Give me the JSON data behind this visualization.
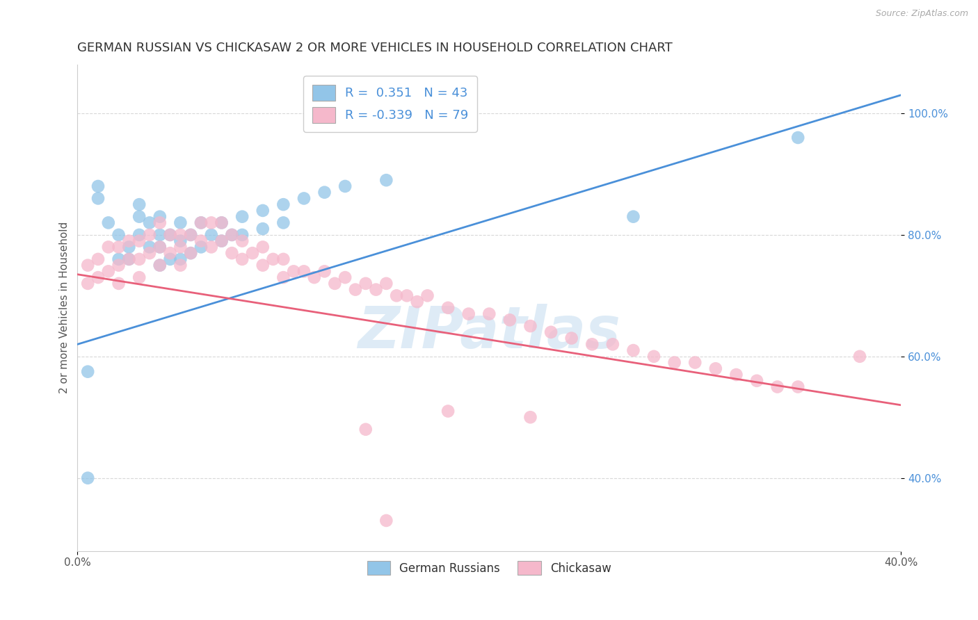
{
  "title": "GERMAN RUSSIAN VS CHICKASAW 2 OR MORE VEHICLES IN HOUSEHOLD CORRELATION CHART",
  "source_text": "Source: ZipAtlas.com",
  "ylabel": "2 or more Vehicles in Household",
  "xlim": [
    0.0,
    0.4
  ],
  "ylim": [
    0.28,
    1.08
  ],
  "xticks": [
    0.0,
    0.4
  ],
  "xtick_labels": [
    "0.0%",
    "40.0%"
  ],
  "yticks": [
    0.4,
    0.6,
    0.8,
    1.0
  ],
  "ytick_labels": [
    "40.0%",
    "60.0%",
    "80.0%",
    "100.0%"
  ],
  "blue_color": "#92C5E8",
  "pink_color": "#F5B8CB",
  "blue_line_color": "#4A90D9",
  "pink_line_color": "#E8607A",
  "r_blue": 0.351,
  "n_blue": 43,
  "r_pink": -0.339,
  "n_pink": 79,
  "legend_label_blue": "German Russians",
  "legend_label_pink": "Chickasaw",
  "watermark": "ZIPatlas",
  "background_color": "#ffffff",
  "grid_color": "#d8d8d8",
  "blue_line_x": [
    0.0,
    0.4
  ],
  "blue_line_y": [
    0.62,
    1.03
  ],
  "pink_line_x": [
    0.0,
    0.4
  ],
  "pink_line_y": [
    0.735,
    0.52
  ],
  "blue_scatter_x": [
    0.005,
    0.01,
    0.01,
    0.015,
    0.02,
    0.02,
    0.025,
    0.025,
    0.03,
    0.03,
    0.03,
    0.035,
    0.035,
    0.04,
    0.04,
    0.04,
    0.04,
    0.045,
    0.045,
    0.05,
    0.05,
    0.05,
    0.055,
    0.055,
    0.06,
    0.06,
    0.065,
    0.07,
    0.07,
    0.075,
    0.08,
    0.08,
    0.09,
    0.09,
    0.1,
    0.1,
    0.11,
    0.12,
    0.13,
    0.15,
    0.27,
    0.005,
    0.35
  ],
  "blue_scatter_y": [
    0.575,
    0.88,
    0.86,
    0.82,
    0.8,
    0.76,
    0.78,
    0.76,
    0.85,
    0.83,
    0.8,
    0.82,
    0.78,
    0.83,
    0.8,
    0.78,
    0.75,
    0.8,
    0.76,
    0.82,
    0.79,
    0.76,
    0.8,
    0.77,
    0.82,
    0.78,
    0.8,
    0.82,
    0.79,
    0.8,
    0.83,
    0.8,
    0.84,
    0.81,
    0.85,
    0.82,
    0.86,
    0.87,
    0.88,
    0.89,
    0.83,
    0.4,
    0.96
  ],
  "pink_scatter_x": [
    0.005,
    0.005,
    0.01,
    0.01,
    0.015,
    0.015,
    0.02,
    0.02,
    0.02,
    0.025,
    0.025,
    0.03,
    0.03,
    0.03,
    0.035,
    0.035,
    0.04,
    0.04,
    0.04,
    0.045,
    0.045,
    0.05,
    0.05,
    0.05,
    0.055,
    0.055,
    0.06,
    0.06,
    0.065,
    0.065,
    0.07,
    0.07,
    0.075,
    0.075,
    0.08,
    0.08,
    0.085,
    0.09,
    0.09,
    0.095,
    0.1,
    0.1,
    0.105,
    0.11,
    0.115,
    0.12,
    0.125,
    0.13,
    0.135,
    0.14,
    0.145,
    0.15,
    0.155,
    0.16,
    0.165,
    0.17,
    0.18,
    0.19,
    0.2,
    0.21,
    0.22,
    0.23,
    0.24,
    0.25,
    0.26,
    0.27,
    0.28,
    0.29,
    0.3,
    0.31,
    0.32,
    0.33,
    0.34,
    0.35,
    0.38,
    0.14,
    0.18,
    0.22,
    0.15
  ],
  "pink_scatter_y": [
    0.75,
    0.72,
    0.76,
    0.73,
    0.78,
    0.74,
    0.78,
    0.75,
    0.72,
    0.79,
    0.76,
    0.79,
    0.76,
    0.73,
    0.8,
    0.77,
    0.82,
    0.78,
    0.75,
    0.8,
    0.77,
    0.8,
    0.78,
    0.75,
    0.8,
    0.77,
    0.82,
    0.79,
    0.82,
    0.78,
    0.82,
    0.79,
    0.8,
    0.77,
    0.79,
    0.76,
    0.77,
    0.78,
    0.75,
    0.76,
    0.76,
    0.73,
    0.74,
    0.74,
    0.73,
    0.74,
    0.72,
    0.73,
    0.71,
    0.72,
    0.71,
    0.72,
    0.7,
    0.7,
    0.69,
    0.7,
    0.68,
    0.67,
    0.67,
    0.66,
    0.65,
    0.64,
    0.63,
    0.62,
    0.62,
    0.61,
    0.6,
    0.59,
    0.59,
    0.58,
    0.57,
    0.56,
    0.55,
    0.55,
    0.6,
    0.48,
    0.51,
    0.5,
    0.33
  ],
  "title_fontsize": 13,
  "axis_label_fontsize": 11,
  "tick_fontsize": 11
}
